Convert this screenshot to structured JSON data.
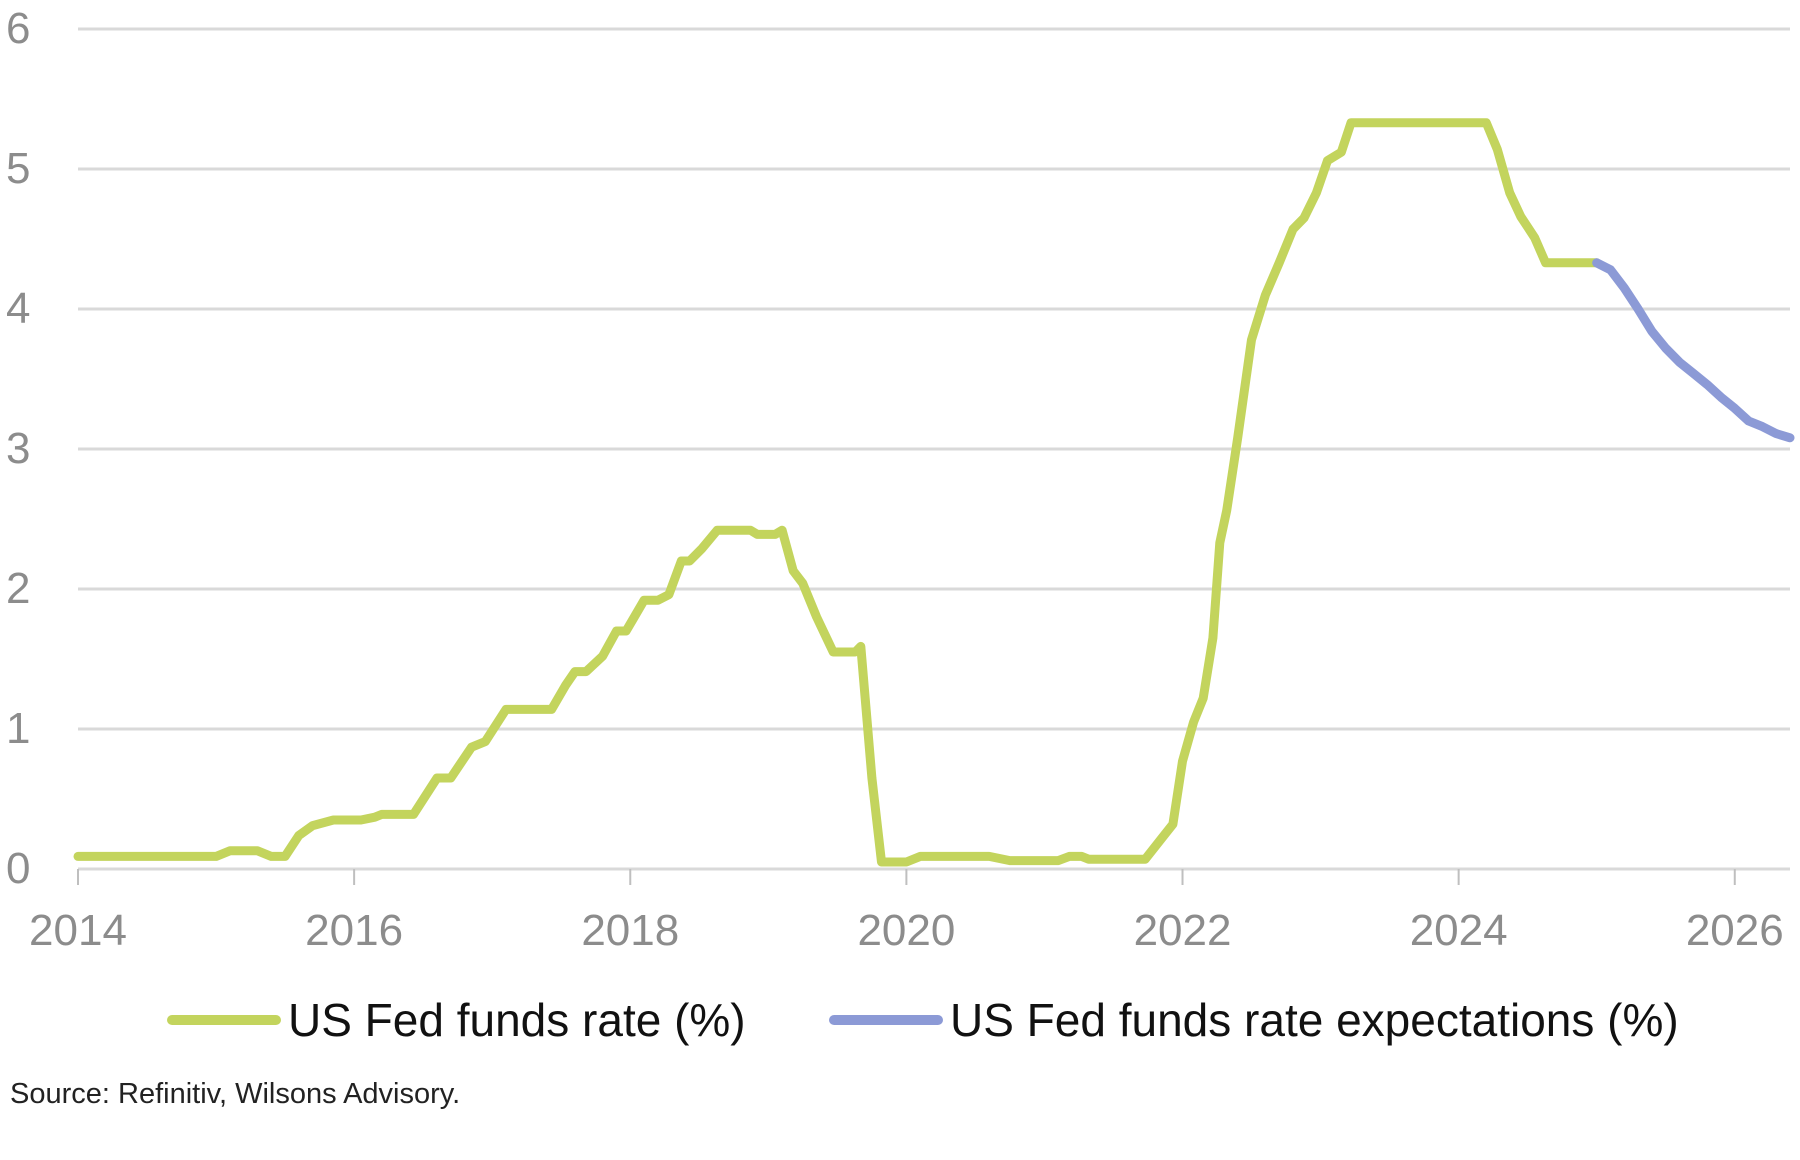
{
  "chart_data": {
    "type": "line",
    "title": "",
    "xlabel": "",
    "ylabel": "",
    "xlim": [
      2014,
      2026.4
    ],
    "ylim": [
      0,
      6
    ],
    "x_ticks": [
      "2014",
      "2016",
      "2018",
      "2020",
      "2022",
      "2024",
      "2026"
    ],
    "y_ticks": [
      "0",
      "1",
      "2",
      "3",
      "4",
      "5",
      "6"
    ],
    "grid": "horizontal",
    "legend_position": "bottom",
    "series": [
      {
        "name": "US Fed funds rate (%)",
        "color": "#c3d45d",
        "points": [
          [
            2014.0,
            0.09
          ],
          [
            2015.0,
            0.09
          ],
          [
            2015.1,
            0.13
          ],
          [
            2015.3,
            0.13
          ],
          [
            2015.4,
            0.09
          ],
          [
            2015.5,
            0.09
          ],
          [
            2015.6,
            0.24
          ],
          [
            2015.7,
            0.31
          ],
          [
            2015.85,
            0.35
          ],
          [
            2016.05,
            0.35
          ],
          [
            2016.15,
            0.37
          ],
          [
            2016.2,
            0.39
          ],
          [
            2016.43,
            0.39
          ],
          [
            2016.6,
            0.65
          ],
          [
            2016.7,
            0.65
          ],
          [
            2016.85,
            0.87
          ],
          [
            2016.95,
            0.91
          ],
          [
            2017.1,
            1.14
          ],
          [
            2017.43,
            1.14
          ],
          [
            2017.53,
            1.31
          ],
          [
            2017.6,
            1.41
          ],
          [
            2017.68,
            1.41
          ],
          [
            2017.8,
            1.52
          ],
          [
            2017.9,
            1.7
          ],
          [
            2017.97,
            1.7
          ],
          [
            2018.1,
            1.92
          ],
          [
            2018.2,
            1.92
          ],
          [
            2018.28,
            1.96
          ],
          [
            2018.37,
            2.2
          ],
          [
            2018.43,
            2.2
          ],
          [
            2018.52,
            2.29
          ],
          [
            2018.63,
            2.42
          ],
          [
            2018.87,
            2.42
          ],
          [
            2018.92,
            2.39
          ],
          [
            2019.05,
            2.39
          ],
          [
            2019.1,
            2.42
          ],
          [
            2019.18,
            2.13
          ],
          [
            2019.25,
            2.04
          ],
          [
            2019.35,
            1.8
          ],
          [
            2019.47,
            1.55
          ],
          [
            2019.63,
            1.55
          ],
          [
            2019.67,
            1.59
          ],
          [
            2019.75,
            0.65
          ],
          [
            2019.82,
            0.05
          ],
          [
            2019.92,
            0.05
          ],
          [
            2020.0,
            0.05
          ],
          [
            2020.1,
            0.09
          ],
          [
            2020.6,
            0.09
          ],
          [
            2020.75,
            0.06
          ],
          [
            2021.1,
            0.06
          ],
          [
            2021.18,
            0.09
          ],
          [
            2021.27,
            0.09
          ],
          [
            2021.32,
            0.07
          ],
          [
            2021.73,
            0.07
          ],
          [
            2021.85,
            0.22
          ],
          [
            2021.93,
            0.32
          ],
          [
            2022.0,
            0.77
          ],
          [
            2022.08,
            1.05
          ],
          [
            2022.15,
            1.22
          ],
          [
            2022.22,
            1.65
          ],
          [
            2022.27,
            2.33
          ],
          [
            2022.32,
            2.56
          ],
          [
            2022.4,
            3.08
          ],
          [
            2022.5,
            3.78
          ],
          [
            2022.6,
            4.1
          ],
          [
            2022.7,
            4.33
          ],
          [
            2022.8,
            4.57
          ],
          [
            2022.88,
            4.65
          ],
          [
            2022.97,
            4.83
          ],
          [
            2023.05,
            5.06
          ],
          [
            2023.15,
            5.12
          ],
          [
            2023.22,
            5.33
          ],
          [
            2024.2,
            5.33
          ],
          [
            2024.28,
            5.14
          ],
          [
            2024.37,
            4.83
          ],
          [
            2024.45,
            4.66
          ],
          [
            2024.55,
            4.51
          ],
          [
            2024.63,
            4.33
          ],
          [
            2025.0,
            4.33
          ]
        ]
      },
      {
        "name": "US Fed funds rate expectations (%)",
        "color": "#8c9ad6",
        "points": [
          [
            2025.0,
            4.33
          ],
          [
            2025.1,
            4.28
          ],
          [
            2025.2,
            4.15
          ],
          [
            2025.3,
            4.0
          ],
          [
            2025.4,
            3.84
          ],
          [
            2025.5,
            3.72
          ],
          [
            2025.6,
            3.62
          ],
          [
            2025.7,
            3.54
          ],
          [
            2025.8,
            3.46
          ],
          [
            2025.9,
            3.37
          ],
          [
            2026.0,
            3.29
          ],
          [
            2026.1,
            3.2
          ],
          [
            2026.2,
            3.16
          ],
          [
            2026.3,
            3.11
          ],
          [
            2026.4,
            3.08
          ]
        ]
      }
    ]
  },
  "source": "Source: Refinitiv, Wilsons Advisory."
}
